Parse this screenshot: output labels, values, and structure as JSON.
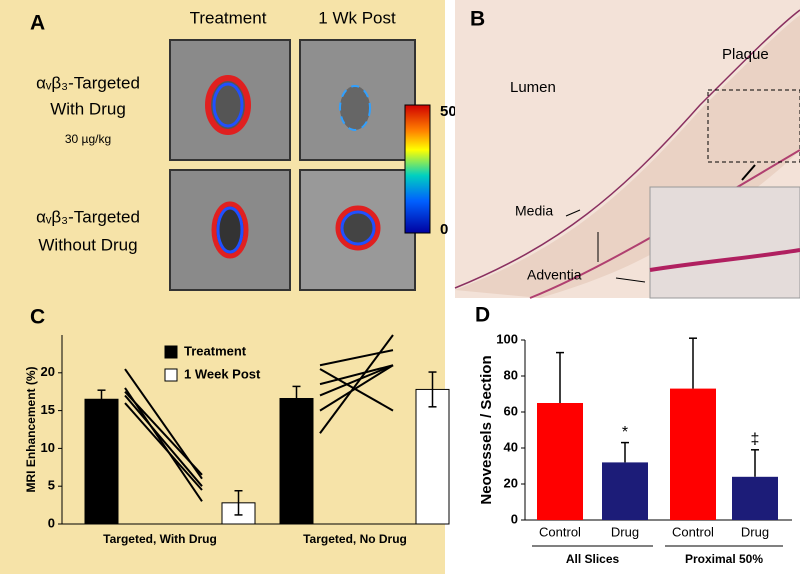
{
  "panel_a": {
    "label": "A",
    "col_headers": [
      "Treatment",
      "1 Wk Post"
    ],
    "rows": [
      {
        "label": "αᵥβ₃-Targeted",
        "sublabel": "With Drug",
        "dose": "30 µg/kg"
      },
      {
        "label": "αᵥβ₃-Targeted",
        "sublabel": "Without Drug"
      }
    ],
    "colorbar_ticks": [
      50,
      0
    ]
  },
  "panel_b": {
    "label": "B",
    "annotations": [
      "Lumen",
      "Plaque",
      "Media",
      "Adventia"
    ]
  },
  "chart_data": [
    {
      "type": "bar",
      "label": "C",
      "ylabel": "MRI Enhancement (%)",
      "categories": [
        "Targeted, With Drug",
        "Targeted, No Drug"
      ],
      "series": [
        {
          "name": "Treatment",
          "color": "#000000",
          "values": [
            16.5,
            16.6
          ],
          "errors": [
            1.2,
            1.6
          ]
        },
        {
          "name": "1 Week Post",
          "color": "#ffffff",
          "values": [
            2.8,
            17.8
          ],
          "errors": [
            1.6,
            2.3
          ]
        }
      ],
      "subjects": [
        [
          [
            20.5,
            6
          ],
          [
            18,
            3
          ],
          [
            17,
            5
          ],
          [
            16,
            4.5
          ],
          [
            17.5,
            6.5
          ]
        ],
        [
          [
            12,
            25
          ],
          [
            15,
            21
          ],
          [
            18.5,
            21
          ],
          [
            21,
            23
          ],
          [
            20.5,
            15
          ],
          [
            17,
            21
          ]
        ]
      ],
      "ylim": [
        0,
        25
      ],
      "yticks": [
        0,
        5,
        10,
        15,
        20
      ]
    },
    {
      "type": "bar",
      "label": "D",
      "ylabel": "Neovessels / Section",
      "categories": [
        "Control",
        "Drug",
        "Control",
        "Drug"
      ],
      "groups": [
        "All Slices",
        "Proximal 50%"
      ],
      "values": [
        65,
        32,
        73,
        24
      ],
      "errors": [
        28,
        11,
        28,
        15
      ],
      "colors": [
        "#ff0000",
        "#1c1c78",
        "#ff0000",
        "#1c1c78"
      ],
      "value_annotations": [
        null,
        "*",
        null,
        "‡"
      ],
      "ylim": [
        0,
        100
      ],
      "yticks": [
        0,
        20,
        40,
        60,
        80,
        100
      ]
    }
  ]
}
